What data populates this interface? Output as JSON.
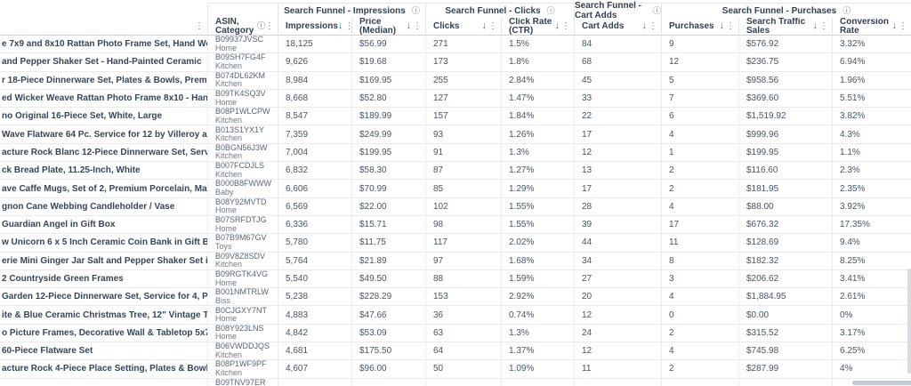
{
  "colors": {
    "accent_teal": "#008296",
    "header_text": "#33424f",
    "body_text": "#4a5560",
    "border": "#e9ecee"
  },
  "icons": {
    "sort_desc": "↓",
    "kebab": "⋮",
    "info": "ⓘ"
  },
  "header": {
    "groups": [
      {
        "label": "Search Funnel - Impressions"
      },
      {
        "label": "Search Funnel - Clicks"
      },
      {
        "label": "Search Funnel - Cart Adds"
      },
      {
        "label": "Search Funnel - Purchases"
      }
    ],
    "columns": [
      {
        "key": "product",
        "label": "",
        "sort": false,
        "info": false
      },
      {
        "key": "asin",
        "label": "ASIN, Category",
        "sort": false,
        "info": true
      },
      {
        "key": "impressions",
        "label": "Impressions",
        "sort": true,
        "sort_active": true
      },
      {
        "key": "price",
        "label": "Price (Median)",
        "sort": true
      },
      {
        "key": "clicks",
        "label": "Clicks",
        "sort": true
      },
      {
        "key": "ctr",
        "label": "Click Rate (CTR)",
        "sort": true
      },
      {
        "key": "cart_adds",
        "label": "Cart Adds",
        "sort": true
      },
      {
        "key": "purchases",
        "label": "Purchases",
        "sort": true
      },
      {
        "key": "sales",
        "label": "Search Traffic Sales",
        "sort": true
      },
      {
        "key": "conversion",
        "label": "Conversion Rate",
        "sort": true
      }
    ]
  },
  "rows": [
    {
      "product": "e 7x9 and 8x10 Rattan Photo Frame Set, Hand Woven Wicker Weave Natural …",
      "asin": "B09937JVSC",
      "category": "Home",
      "impressions": "18,125",
      "price": "$56.99",
      "clicks": "271",
      "ctr": "1.5%",
      "cart_adds": "84",
      "purchases": "9",
      "sales": "$576.92",
      "conversion": "3.32%"
    },
    {
      "product": "and Pepper Shaker Set - Hand-Painted Ceramic",
      "asin": "B09SH7FG4F",
      "category": "Kitchen",
      "impressions": "9,626",
      "price": "$19.68",
      "clicks": "173",
      "ctr": "1.8%",
      "cart_adds": "68",
      "purchases": "12",
      "sales": "$236.75",
      "conversion": "6.94%"
    },
    {
      "product": "r 18-Piece Dinnerware Set, Plates & Bowls, Premium Porcelain, Made in Germ…",
      "asin": "B074DL62KM",
      "category": "Kitchen",
      "impressions": "8,984",
      "price": "$169.95",
      "clicks": "255",
      "ctr": "2.84%",
      "cart_adds": "45",
      "purchases": "5",
      "sales": "$958.56",
      "conversion": "1.96%"
    },
    {
      "product": "ed Wicker Weave Rattan Photo Frame 8x10 - Hand Woven Rustic Farmhouse …",
      "asin": "B09TK4SQ3V",
      "category": "Home",
      "impressions": "8,668",
      "price": "$52.80",
      "clicks": "127",
      "ctr": "1.47%",
      "cart_adds": "33",
      "purchases": "7",
      "sales": "$369.60",
      "conversion": "5.51%"
    },
    {
      "product": "no Original 16-Piece Set, White, Large",
      "asin": "B08P1WLCPW",
      "category": "Kitchen",
      "impressions": "8,547",
      "price": "$189.99",
      "clicks": "157",
      "ctr": "1.84%",
      "cart_adds": "22",
      "purchases": "6",
      "sales": "$1,519.92",
      "conversion": "3.82%"
    },
    {
      "product": "Wave Flatware 64 Pc. Service for 12 by Villeroy and Boch",
      "asin": "B013S1YX1Y",
      "category": "Kitchen",
      "impressions": "7,359",
      "price": "$249.99",
      "clicks": "93",
      "ctr": "1.26%",
      "cart_adds": "17",
      "purchases": "4",
      "sales": "$999.96",
      "conversion": "4.3%"
    },
    {
      "product": "acture Rock Blanc 12-Piece Dinnerware Set, Service for 4, Plates & Bowls, Pre…",
      "asin": "B0BGN56J3W",
      "category": "Kitchen",
      "impressions": "7,004",
      "price": "$199.95",
      "clicks": "91",
      "ctr": "1.3%",
      "cart_adds": "12",
      "purchases": "1",
      "sales": "$199.95",
      "conversion": "1.1%"
    },
    {
      "product": "ck Bread Plate, 11.25-Inch, White",
      "asin": "B007FCDJLS",
      "category": "Kitchen",
      "impressions": "6,832",
      "price": "$58.30",
      "clicks": "87",
      "ctr": "1.27%",
      "cart_adds": "13",
      "purchases": "2",
      "sales": "$116.60",
      "conversion": "2.3%"
    },
    {
      "product": "ave Caffe Mugs, Set of 2, Premium Porcelain, Made in Germany, 11 oz",
      "asin": "B000B8FWWW",
      "category": "Baby",
      "impressions": "6,606",
      "price": "$70.99",
      "clicks": "85",
      "ctr": "1.29%",
      "cart_adds": "17",
      "purchases": "2",
      "sales": "$181.95",
      "conversion": "2.35%"
    },
    {
      "product": "gnon Cane Webbing Candleholder / Vase",
      "asin": "B08Y92MVTD",
      "category": "Home",
      "impressions": "6,569",
      "price": "$22.00",
      "clicks": "102",
      "ctr": "1.55%",
      "cart_adds": "28",
      "purchases": "4",
      "sales": "$88.00",
      "conversion": "3.92%"
    },
    {
      "product": "Guardian Angel in Gift Box",
      "asin": "B07SRFDTJG",
      "category": "Home",
      "impressions": "6,336",
      "price": "$15.71",
      "clicks": "98",
      "ctr": "1.55%",
      "cart_adds": "39",
      "purchases": "17",
      "sales": "$676.32",
      "conversion": "17.35%"
    },
    {
      "product": "w Unicorn 6 x 5 Inch Ceramic Coin Bank in Gift Box",
      "asin": "B07B9M67GV",
      "category": "Toys",
      "impressions": "5,780",
      "price": "$11.75",
      "clicks": "117",
      "ctr": "2.02%",
      "cart_adds": "44",
      "purchases": "11",
      "sales": "$128.69",
      "conversion": "9.4%"
    },
    {
      "product": "erie Mini Ginger Jar Salt and Pepper Shaker Set in Gift Box",
      "asin": "B09V8Z8SDV",
      "category": "Kitchen",
      "impressions": "5,764",
      "price": "$21.89",
      "clicks": "97",
      "ctr": "1.68%",
      "cart_adds": "34",
      "purchases": "8",
      "sales": "$182.32",
      "conversion": "8.25%"
    },
    {
      "product": "2 Countryside Green Frames",
      "asin": "B09RGTK4VG",
      "category": "Home",
      "impressions": "5,540",
      "price": "$49.50",
      "clicks": "88",
      "ctr": "1.59%",
      "cart_adds": "27",
      "purchases": "3",
      "sales": "$206.62",
      "conversion": "3.41%"
    },
    {
      "product": "Garden 12-Piece Dinnerware Set, Service for 4, Plates, Bowls & Mugs, Premi…",
      "asin": "B001NMTRLW",
      "category": "Biss",
      "impressions": "5,238",
      "price": "$228.29",
      "clicks": "153",
      "ctr": "2.92%",
      "cart_adds": "20",
      "purchases": "4",
      "sales": "$1,884.95",
      "conversion": "2.61%"
    },
    {
      "product": "ite & Blue Ceramic Christmas Tree, 12\" Vintage Tabletop Holiday Figurine, C…",
      "asin": "B0CJGXY7NT",
      "category": "Home",
      "impressions": "4,883",
      "price": "$47.66",
      "clicks": "36",
      "ctr": "0.74%",
      "cart_adds": "12",
      "purchases": "0",
      "sales": "$0.00",
      "conversion": "0%"
    },
    {
      "product": "o Picture Frames, Decorative Wall & Tabletop 5x7 & 4x6 Gold Frame Set - Ve…",
      "asin": "B08Y923LNS",
      "category": "Home",
      "impressions": "4,842",
      "price": "$53.09",
      "clicks": "63",
      "ctr": "1.3%",
      "cart_adds": "24",
      "purchases": "2",
      "sales": "$315.52",
      "conversion": "3.17%"
    },
    {
      "product": "60-Piece Flatware Set",
      "asin": "B06VWDDJQS",
      "category": "Kitchen",
      "impressions": "4,681",
      "price": "$175.50",
      "clicks": "64",
      "ctr": "1.37%",
      "cart_adds": "12",
      "purchases": "4",
      "sales": "$745.98",
      "conversion": "6.25%"
    },
    {
      "product": "acture Rock 4-Piece Place Setting, Plates & Bowls, Premium Porcelain, Made i…",
      "asin": "B08P1WF9PF",
      "category": "Kitchen",
      "impressions": "4,607",
      "price": "$96.00",
      "clicks": "50",
      "ctr": "1.09%",
      "cart_adds": "11",
      "purchases": "2",
      "sales": "$287.99",
      "conversion": "4%"
    }
  ],
  "partial_row": {
    "asin": "B09TNV97ER"
  }
}
